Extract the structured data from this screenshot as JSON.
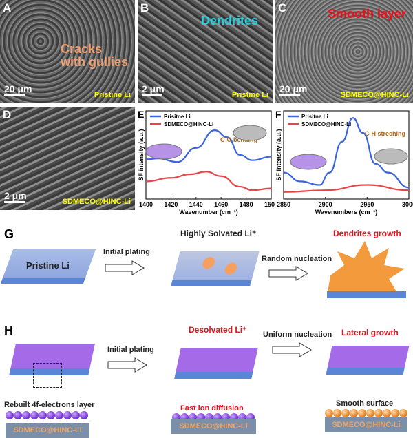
{
  "panels": {
    "A": {
      "label": "A",
      "scale": "20 μm",
      "sample": "Pristine Li",
      "annotation": "Cracks with gullies"
    },
    "B": {
      "label": "B",
      "scale": "2 μm",
      "sample": "Pristine Li",
      "annotation": "Dendrites"
    },
    "C": {
      "label": "C",
      "scale": "20 μm",
      "sample": "SDMECO@HINC-Li",
      "annotation": "Smooth layer"
    },
    "D": {
      "label": "D",
      "scale": "2 μm",
      "sample": "SDMECO@HINC-Li"
    }
  },
  "chart_data": [
    {
      "panel": "E",
      "type": "line",
      "xlabel": "Wavenumber (cm⁻¹)",
      "ylabel": "SF intensity (a.u.)",
      "xlim": [
        1400,
        1500
      ],
      "ylim": [
        0,
        1
      ],
      "xticks": [
        1400,
        1420,
        1440,
        1460,
        1480,
        1500
      ],
      "annotation": "C-O bending",
      "legend": "top-left",
      "series": [
        {
          "name": "Prisitne Li",
          "color": "#3a63e0",
          "x": [
            1400,
            1410,
            1425,
            1440,
            1455,
            1465,
            1475,
            1485,
            1500
          ],
          "y": [
            0.45,
            0.46,
            0.42,
            0.58,
            0.78,
            0.7,
            0.5,
            0.44,
            0.48
          ]
        },
        {
          "name": "SDMECO@HINC-Li",
          "color": "#e8454a",
          "x": [
            1400,
            1420,
            1435,
            1448,
            1460,
            1475,
            1485,
            1500
          ],
          "y": [
            0.2,
            0.24,
            0.28,
            0.31,
            0.26,
            0.14,
            0.1,
            0.12
          ]
        }
      ]
    },
    {
      "panel": "F",
      "type": "line",
      "xlabel": "Wavenumbers (cm⁻¹)",
      "ylabel": "SF intensity (a.u.)",
      "xlim": [
        2850,
        3000
      ],
      "ylim": [
        0,
        1
      ],
      "xticks": [
        2850,
        2900,
        2950,
        3000
      ],
      "annotation": "C-H streching",
      "legend": "top-left",
      "series": [
        {
          "name": "Prisitne Li",
          "color": "#3a63e0",
          "x": [
            2850,
            2870,
            2893,
            2905,
            2920,
            2933,
            2945,
            2960,
            2975,
            3000
          ],
          "y": [
            0.3,
            0.2,
            0.16,
            0.3,
            0.65,
            0.92,
            0.75,
            0.4,
            0.3,
            0.13
          ]
        },
        {
          "name": "SDMECO@HINC-Li",
          "color": "#e8454a",
          "x": [
            2850,
            2900,
            2950,
            3000
          ],
          "y": [
            0.08,
            0.1,
            0.16,
            0.1
          ]
        }
      ]
    }
  ],
  "G": {
    "label": "G",
    "start": "Pristine Li",
    "step1": "Initial plating",
    "mid": "Highly Solvated Li⁺",
    "step2": "Random nucleation",
    "end": "Dendrites growth"
  },
  "H": {
    "label": "H",
    "step1": "Initial plating",
    "mid": "Desolvated Li⁺",
    "step2": "Uniform nucleation",
    "end": "Lateral growth",
    "left_caption": "Rebuilt 4f-electrons layer",
    "mid_caption": "Fast ion diffusion",
    "right_caption": "Smooth surface",
    "base": "SDMECO@HINC-Li"
  }
}
